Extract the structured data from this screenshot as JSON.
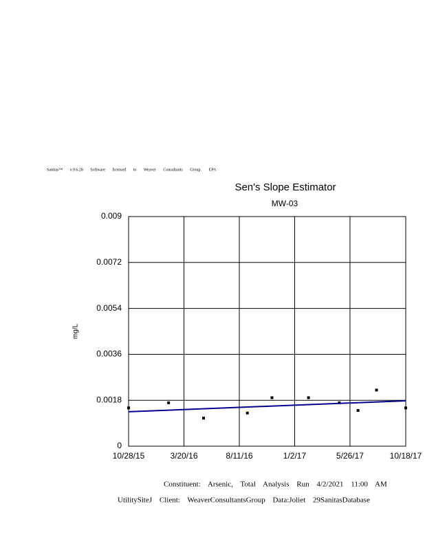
{
  "chart_data": {
    "type": "scatter",
    "header": "Sanitas™ v.9.6.28 Software licensed to Weaver Consultants Group. EPA",
    "title": "Sen's Slope Estimator",
    "subtitle": "MW-03",
    "y_label": "mg/L",
    "footer": [
      "Constituent: Arsenic, Total Analysis Run 4/2/2021 11:00 AM",
      "UtilitySiteJ Client: WeaverConsultantsGroup Data:Joliet 29SanitasDatabase"
    ],
    "xlim": [
      "10/28/15",
      "10/18/17"
    ],
    "xticks": [
      "10/28/15",
      "3/20/16",
      "8/11/16",
      "1/2/17",
      "5/26/17",
      "10/18/17"
    ],
    "ylim": [
      0,
      0.009
    ],
    "yticks": [
      0,
      0.0018,
      0.0036,
      0.0054,
      0.0072,
      0.009
    ],
    "grid": true,
    "series": [
      {
        "style": "points",
        "color": "#000000",
        "x": [
          "10/28/15",
          "2/9/16",
          "5/10/16",
          "9/1/16",
          "11/4/16",
          "2/7/17",
          "4/28/17",
          "6/16/17",
          "8/3/17",
          "10/18/17"
        ],
        "values": [
          0.0015,
          0.0017,
          0.0011,
          0.0013,
          0.0019,
          0.0019,
          0.0017,
          0.0014,
          0.0022,
          0.0015
        ]
      },
      {
        "style": "line",
        "color": "#00008b",
        "x": [
          "10/28/15",
          "10/18/17"
        ],
        "values": [
          0.00135,
          0.00178
        ]
      }
    ]
  }
}
